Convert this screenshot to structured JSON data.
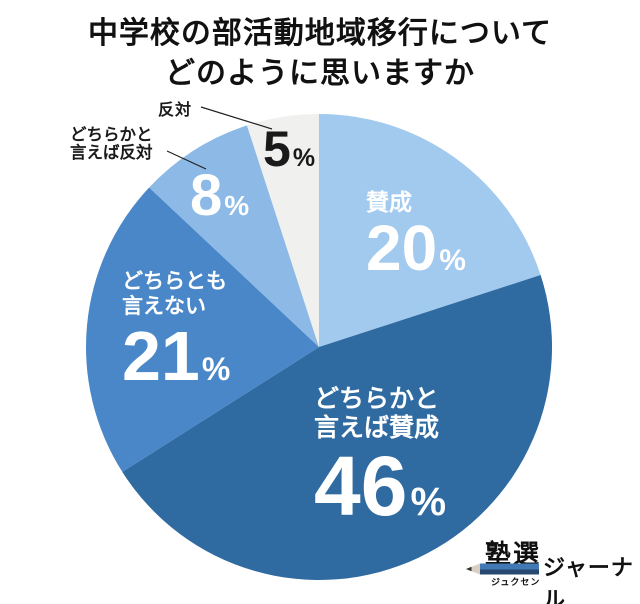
{
  "title": {
    "line1": "中学校の部活動地域移行について",
    "line2": "どのように思いますか"
  },
  "chart_data": {
    "type": "pie",
    "title": "中学校の部活動地域移行についてどのように思いますか",
    "start_angle": "12-oclock",
    "direction": "clockwise",
    "unit": "%",
    "legend": "none",
    "slices": [
      {
        "label": "賛成",
        "value": 20,
        "color": "#a2c9ee",
        "text_color": "#ffffff",
        "label_placement": "inside"
      },
      {
        "label": "どちらかと言えば賛成",
        "value": 46,
        "color": "#2f6aa1",
        "text_color": "#ffffff",
        "label_placement": "inside"
      },
      {
        "label": "どちらとも言えない",
        "value": 21,
        "color": "#4a87c9",
        "text_color": "#ffffff",
        "label_placement": "inside"
      },
      {
        "label": "どちらかと言えば反対",
        "value": 8,
        "color": "#8db9e6",
        "text_color": "#ffffff",
        "label_placement": "callout"
      },
      {
        "label": "反対",
        "value": 5,
        "color": "#f0f0ee",
        "text_color": "#1a1a1a",
        "label_placement": "callout"
      }
    ]
  },
  "overlays": {
    "sansei": {
      "name": "賛成",
      "value": "20",
      "unit": "%"
    },
    "yaya_sansei": {
      "name_lines": [
        "どちらかと",
        "言えば賛成"
      ],
      "value": "46",
      "unit": "%"
    },
    "neutral": {
      "name_lines": [
        "どちらとも",
        "言えない"
      ],
      "value": "21",
      "unit": "%"
    },
    "yaya_hantai": {
      "callout_lines": [
        "どちらかと",
        "言えば反対"
      ],
      "value": "8",
      "unit": "%"
    },
    "hantai": {
      "callout": "反対",
      "value": "5",
      "unit": "%"
    }
  },
  "logo": {
    "brand": "塾選",
    "brand_reading": "ジュクセン",
    "suffix": "ジャーナル"
  }
}
